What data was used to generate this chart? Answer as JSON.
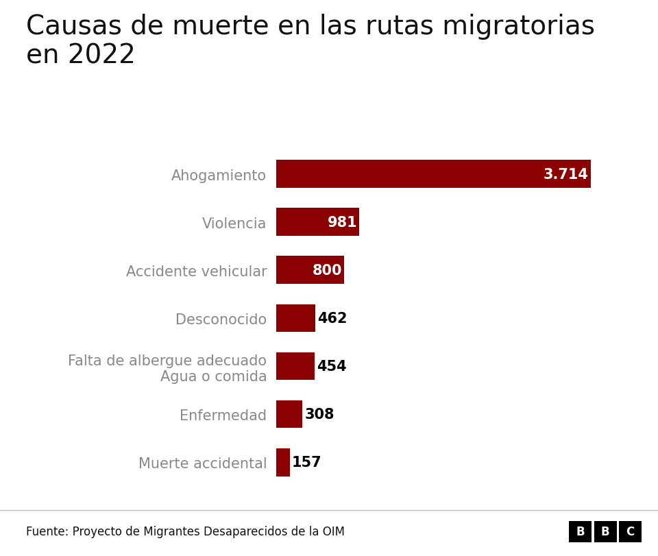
{
  "title": "Causas de muerte en las rutas migratorias\nen 2022",
  "categories": [
    "Ahogamiento",
    "Violencia",
    "Accidente vehicular",
    "Desconocido",
    "Falta de albergue adecuado\nAgua o comida",
    "Enfermedad",
    "Muerte accidental"
  ],
  "values": [
    3714,
    981,
    800,
    462,
    454,
    308,
    157
  ],
  "labels": [
    "3.714",
    "981",
    "800",
    "462",
    "454",
    "308",
    "157"
  ],
  "bar_colors": [
    "#8B0000",
    "#8B0000",
    "#8B0000",
    "#8B0000",
    "#8B0000",
    "#8B0000",
    "#8B0000"
  ],
  "background_color": "#ffffff",
  "title_fontsize": 28,
  "title_fontweight": "normal",
  "label_fontsize": 15,
  "value_fontsize": 15,
  "source_text": "Fuente: Proyecto de Migrantes Desaparecidos de la OIM",
  "source_fontsize": 12,
  "xlim": [
    0,
    4200
  ],
  "label_color": "#888888",
  "title_color": "#111111",
  "white_label_threshold": 500,
  "bar_height": 0.58
}
